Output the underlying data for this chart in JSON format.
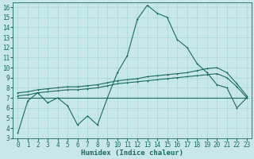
{
  "xlabel": "Humidex (Indice chaleur)",
  "background_color": "#c8e8e8",
  "grid_color": "#a8d8d8",
  "line_color": "#1a6b5a",
  "x_values": [
    0,
    1,
    2,
    3,
    4,
    5,
    6,
    7,
    8,
    9,
    10,
    11,
    12,
    13,
    14,
    15,
    16,
    17,
    18,
    19,
    20,
    21,
    22,
    23
  ],
  "y_main": [
    3.5,
    6.7,
    7.5,
    6.5,
    7.0,
    6.2,
    4.3,
    5.2,
    4.3,
    7.0,
    9.5,
    11.2,
    14.8,
    16.2,
    15.4,
    15.0,
    12.8,
    12.0,
    10.4,
    9.5,
    8.3,
    8.0,
    6.0,
    7.0
  ],
  "y_avg1": [
    7.5,
    7.6,
    7.8,
    7.9,
    8.0,
    8.1,
    8.1,
    8.2,
    8.3,
    8.5,
    8.7,
    8.8,
    8.9,
    9.1,
    9.2,
    9.3,
    9.4,
    9.5,
    9.7,
    9.9,
    10.0,
    9.5,
    8.4,
    7.2
  ],
  "y_avg2": [
    7.2,
    7.3,
    7.5,
    7.6,
    7.7,
    7.8,
    7.8,
    7.9,
    8.0,
    8.2,
    8.4,
    8.5,
    8.6,
    8.7,
    8.8,
    8.9,
    9.0,
    9.1,
    9.2,
    9.3,
    9.4,
    9.0,
    8.1,
    7.0
  ],
  "y_flat": [
    7.0,
    7.0,
    7.0,
    7.0,
    7.0,
    7.0,
    7.0,
    7.0,
    7.0,
    7.0,
    7.0,
    7.0,
    7.0,
    7.0,
    7.0,
    7.0,
    7.0,
    7.0,
    7.0,
    7.0,
    7.0,
    7.0,
    7.0,
    7.0
  ],
  "ylim": [
    3,
    16.5
  ],
  "xlim": [
    -0.5,
    23.5
  ],
  "yticks": [
    3,
    4,
    5,
    6,
    7,
    8,
    9,
    10,
    11,
    12,
    13,
    14,
    15,
    16
  ],
  "xticks": [
    0,
    1,
    2,
    3,
    4,
    5,
    6,
    7,
    8,
    9,
    10,
    11,
    12,
    13,
    14,
    15,
    16,
    17,
    18,
    19,
    20,
    21,
    22,
    23
  ],
  "font_size_label": 6.5,
  "font_size_tick": 5.5,
  "line_width": 0.8,
  "marker_size": 2.0,
  "marker_ew": 0.7
}
